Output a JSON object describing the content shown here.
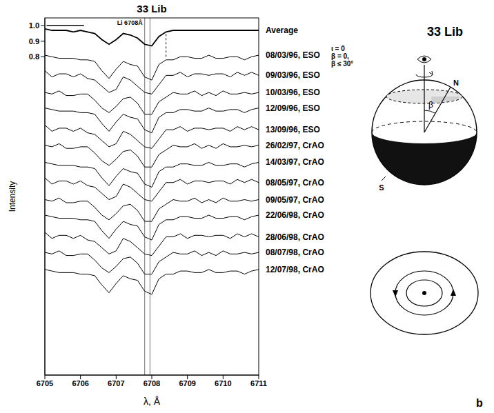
{
  "chart_data": {
    "type": "line",
    "title": "33 Lib",
    "x_label": "λ, Å",
    "y_label": "Intensity",
    "x": [
      6705,
      6705.2,
      6705.4,
      6705.6,
      6705.8,
      6706,
      6706.2,
      6706.4,
      6706.6,
      6706.8,
      6707,
      6707.2,
      6707.4,
      6707.6,
      6707.8,
      6708,
      6708.2,
      6708.4,
      6708.6,
      6708.8,
      6709,
      6709.2,
      6709.4,
      6709.6,
      6709.8,
      6710,
      6710.2,
      6710.4,
      6710.6,
      6710.8,
      6711
    ],
    "xlim": [
      6705,
      6711
    ],
    "xticks": [
      6705,
      6706,
      6707,
      6708,
      6709,
      6710,
      6711
    ],
    "ylim": [
      -1.25,
      1.05
    ],
    "yticks": [
      0.8,
      0.9,
      {
        "value": 1,
        "label": "1.0"
      }
    ],
    "grid": false,
    "series": [
      {
        "name": "Average",
        "color": "#000000",
        "values": [
          0.98,
          0.97,
          0.97,
          0.97,
          0.96,
          0.97,
          0.96,
          0.95,
          0.91,
          0.88,
          0.91,
          0.95,
          0.94,
          0.92,
          0.88,
          0.87,
          0.93,
          0.96,
          0.97,
          0.97,
          0.97,
          0.97,
          0.97,
          0.97,
          0.97,
          0.97,
          0.97,
          0.97,
          0.97,
          0.97,
          0.97
        ]
      },
      {
        "name": "08/03/96, ESO",
        "color": "#000000",
        "values": [
          0.81,
          0.8,
          0.79,
          0.79,
          0.79,
          0.78,
          0.78,
          0.77,
          0.71,
          0.66,
          0.72,
          0.77,
          0.75,
          0.74,
          0.67,
          0.65,
          0.75,
          0.78,
          0.78,
          0.8,
          0.8,
          0.79,
          0.79,
          0.81,
          0.79,
          0.79,
          0.8,
          0.8,
          0.78,
          0.8,
          0.81
        ]
      },
      {
        "name": "09/03/96, ESO",
        "color": "#000000",
        "values": [
          0.71,
          0.67,
          0.69,
          0.69,
          0.67,
          0.69,
          0.66,
          0.65,
          0.61,
          0.57,
          0.59,
          0.67,
          0.65,
          0.61,
          0.57,
          0.56,
          0.62,
          0.68,
          0.68,
          0.7,
          0.67,
          0.69,
          0.69,
          0.68,
          0.69,
          0.69,
          0.67,
          0.7,
          0.68,
          0.7,
          0.68
        ]
      },
      {
        "name": "10/03/96, ESO",
        "color": "#000000",
        "values": [
          0.57,
          0.56,
          0.58,
          0.55,
          0.55,
          0.56,
          0.56,
          0.52,
          0.47,
          0.44,
          0.48,
          0.53,
          0.54,
          0.5,
          0.43,
          0.43,
          0.51,
          0.54,
          0.57,
          0.56,
          0.56,
          0.58,
          0.55,
          0.57,
          0.55,
          0.58,
          0.56,
          0.56,
          0.57,
          0.56,
          0.57
        ]
      },
      {
        "name": "12/09/96, ESO",
        "color": "#000000",
        "values": [
          0.47,
          0.46,
          0.45,
          0.45,
          0.45,
          0.44,
          0.44,
          0.43,
          0.37,
          0.32,
          0.38,
          0.43,
          0.41,
          0.4,
          0.33,
          0.31,
          0.41,
          0.44,
          0.44,
          0.46,
          0.46,
          0.45,
          0.45,
          0.47,
          0.45,
          0.45,
          0.46,
          0.46,
          0.44,
          0.46,
          0.47
        ]
      },
      {
        "name": "13/09/96, ESO",
        "color": "#000000",
        "values": [
          0.36,
          0.32,
          0.34,
          0.34,
          0.32,
          0.34,
          0.31,
          0.3,
          0.26,
          0.22,
          0.24,
          0.32,
          0.3,
          0.26,
          0.22,
          0.21,
          0.27,
          0.33,
          0.33,
          0.35,
          0.32,
          0.34,
          0.34,
          0.33,
          0.34,
          0.34,
          0.32,
          0.35,
          0.33,
          0.35,
          0.33
        ]
      },
      {
        "name": "26/02/97, CrAO",
        "color": "#000000",
        "values": [
          0.23,
          0.22,
          0.24,
          0.21,
          0.21,
          0.22,
          0.22,
          0.18,
          0.13,
          0.1,
          0.14,
          0.19,
          0.2,
          0.16,
          0.09,
          0.09,
          0.17,
          0.2,
          0.23,
          0.22,
          0.22,
          0.24,
          0.21,
          0.23,
          0.21,
          0.24,
          0.22,
          0.22,
          0.23,
          0.22,
          0.23
        ]
      },
      {
        "name": "14/03/97, CrAO",
        "color": "#000000",
        "values": [
          0.12,
          0.11,
          0.1,
          0.1,
          0.1,
          0.09,
          0.09,
          0.08,
          0.02,
          -0.03,
          0.03,
          0.08,
          0.06,
          0.05,
          -0.02,
          -0.04,
          0.06,
          0.09,
          0.09,
          0.11,
          0.11,
          0.1,
          0.1,
          0.12,
          0.1,
          0.1,
          0.11,
          0.11,
          0.09,
          0.11,
          0.12
        ]
      },
      {
        "name": "08/05/97, CrAO",
        "color": "#000000",
        "values": [
          0.02,
          -0.02,
          0,
          0,
          -0.02,
          0,
          -0.03,
          -0.04,
          -0.08,
          -0.12,
          -0.1,
          -0.02,
          -0.04,
          -0.08,
          -0.12,
          -0.13,
          -0.07,
          -0.01,
          -0.01,
          0.01,
          -0.02,
          0,
          0,
          -0.01,
          0,
          0,
          -0.02,
          0.01,
          -0.01,
          0.01,
          -0.01
        ]
      },
      {
        "name": "09/05/97, CrAO",
        "color": "#000000",
        "values": [
          -0.12,
          -0.13,
          -0.11,
          -0.14,
          -0.14,
          -0.13,
          -0.13,
          -0.17,
          -0.22,
          -0.25,
          -0.21,
          -0.16,
          -0.15,
          -0.19,
          -0.26,
          -0.26,
          -0.18,
          -0.15,
          -0.12,
          -0.13,
          -0.13,
          -0.11,
          -0.14,
          -0.12,
          -0.14,
          -0.11,
          -0.13,
          -0.13,
          -0.12,
          -0.13,
          -0.12
        ]
      },
      {
        "name": "22/06/98, CrAO",
        "color": "#000000",
        "values": [
          -0.22,
          -0.23,
          -0.24,
          -0.24,
          -0.24,
          -0.25,
          -0.25,
          -0.26,
          -0.32,
          -0.37,
          -0.31,
          -0.26,
          -0.28,
          -0.29,
          -0.36,
          -0.38,
          -0.28,
          -0.25,
          -0.25,
          -0.23,
          -0.23,
          -0.24,
          -0.24,
          -0.22,
          -0.24,
          -0.24,
          -0.23,
          -0.23,
          -0.25,
          -0.23,
          -0.22
        ]
      },
      {
        "name": "28/06/98, CrAO",
        "color": "#000000",
        "values": [
          -0.33,
          -0.37,
          -0.35,
          -0.35,
          -0.37,
          -0.35,
          -0.38,
          -0.39,
          -0.43,
          -0.47,
          -0.45,
          -0.37,
          -0.39,
          -0.43,
          -0.47,
          -0.48,
          -0.42,
          -0.36,
          -0.36,
          -0.34,
          -0.37,
          -0.35,
          -0.35,
          -0.36,
          -0.35,
          -0.35,
          -0.37,
          -0.34,
          -0.36,
          -0.34,
          -0.36
        ]
      },
      {
        "name": "08/07/98, CrAO",
        "color": "#000000",
        "values": [
          -0.46,
          -0.47,
          -0.45,
          -0.48,
          -0.48,
          -0.47,
          -0.47,
          -0.51,
          -0.56,
          -0.59,
          -0.55,
          -0.5,
          -0.49,
          -0.53,
          -0.6,
          -0.6,
          -0.52,
          -0.49,
          -0.46,
          -0.47,
          -0.47,
          -0.45,
          -0.48,
          -0.46,
          -0.48,
          -0.45,
          -0.47,
          -0.47,
          -0.46,
          -0.47,
          -0.46
        ]
      },
      {
        "name": "12/07/98, CrAO",
        "color": "#000000",
        "values": [
          -0.57,
          -0.58,
          -0.59,
          -0.59,
          -0.59,
          -0.6,
          -0.6,
          -0.61,
          -0.67,
          -0.72,
          -0.66,
          -0.61,
          -0.63,
          -0.64,
          -0.71,
          -0.73,
          -0.63,
          -0.6,
          -0.6,
          -0.58,
          -0.58,
          -0.59,
          -0.59,
          -0.57,
          -0.59,
          -0.59,
          -0.58,
          -0.58,
          -0.6,
          -0.58,
          -0.57
        ]
      }
    ],
    "annotations": [
      {
        "text": "Li 6708Å"
      }
    ],
    "vlines": [
      6707.8,
      6707.95
    ],
    "dashed_segment": {
      "x": 6708.4,
      "y": [
        0.8,
        0.95
      ]
    },
    "continuum_segment": {
      "x": [
        6705.05,
        6706.1
      ],
      "y": 1.0
    },
    "parameters": [
      "ι = 0",
      "β = 0,",
      "β ≤ 30°"
    ]
  },
  "diagram": {
    "title": "33 Lib",
    "north": "N",
    "south": "S",
    "angle": "β",
    "panel": "b"
  }
}
